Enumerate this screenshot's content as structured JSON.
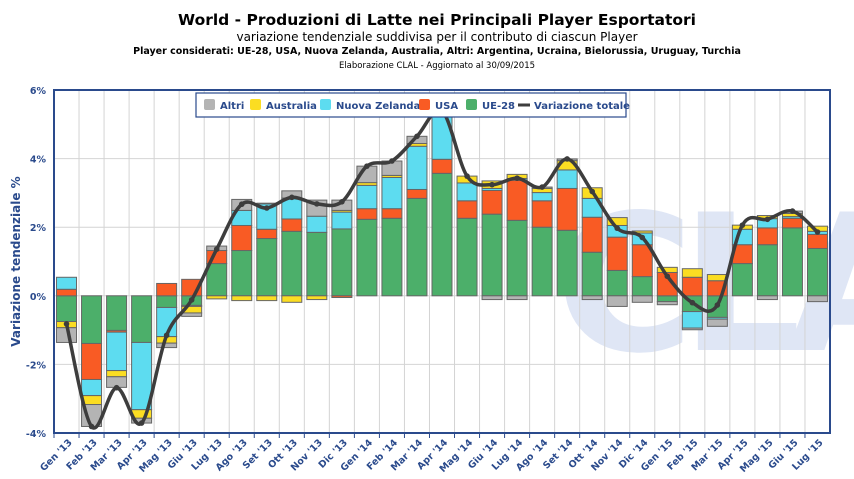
{
  "chart_data": {
    "type": "bar",
    "stacked": true,
    "title": "World - Produzioni di Latte nei Principali Player Esportatori",
    "subtitle": "variazione tendenziale suddivisa per il contributo di ciascun Player",
    "note": "Player considerati: UE-28, USA, Nuova Zelanda, Australia, Altri: Argentina, Ucraina, Bielorussia, Uruguay, Turchia",
    "source": "Elaborazione CLAL - Aggiornato al 30/09/2015",
    "watermark": "CLAL",
    "ylabel": "Variazione tendenziale %",
    "ylim": [
      -4,
      6
    ],
    "yticks": [
      "-4%",
      "-2%",
      "0%",
      "2%",
      "4%",
      "6%"
    ],
    "ytick_values": [
      -4,
      -2,
      0,
      2,
      4,
      6
    ],
    "grid": true,
    "legend_position": "top-right",
    "categories": [
      "Gen '13",
      "Feb '13",
      "Mar '13",
      "Apr '13",
      "Mag '13",
      "Giu '13",
      "Lug '13",
      "Ago '13",
      "Set '13",
      "Ott '13",
      "Nov '13",
      "Dic '13",
      "Gen '14",
      "Feb '14",
      "Mar '14",
      "Apr '14",
      "Mag '14",
      "Giu '14",
      "Lug '14",
      "Ago '14",
      "Set '14",
      "Ott '14",
      "Nov '14",
      "Dic '14",
      "Gen '15",
      "Feb '15",
      "Mar '15",
      "Apr '15",
      "Mag '15",
      "Giu '15",
      "Lug '15"
    ],
    "series": [
      {
        "name": "UE-28",
        "color": "#4caf6a",
        "values": [
          -0.75,
          -1.39,
          -1.01,
          -1.36,
          -0.34,
          -0.28,
          0.94,
          1.32,
          1.67,
          1.88,
          1.85,
          1.95,
          2.23,
          2.26,
          2.84,
          3.57,
          2.26,
          2.38,
          2.2,
          2.0,
          1.91,
          1.27,
          0.74,
          0.56,
          -0.17,
          -0.46,
          -0.63,
          0.94,
          1.49,
          1.98,
          1.38
        ]
      },
      {
        "name": "USA",
        "color": "#f95b24",
        "values": [
          0.19,
          -1.05,
          -0.05,
          0,
          0.36,
          0.48,
          0.38,
          0.73,
          0.27,
          0.36,
          0,
          -0.05,
          0.31,
          0.28,
          0.26,
          0.41,
          0.51,
          0.69,
          1.17,
          0.77,
          1.22,
          1.02,
          0.97,
          0.93,
          0.68,
          0.54,
          0.44,
          0.55,
          0.49,
          0.28,
          0.41
        ]
      },
      {
        "name": "Nuova Zelanda",
        "color": "#5ddcf0",
        "values": [
          0.35,
          -0.47,
          -1.12,
          -1.96,
          -0.85,
          -0.03,
          0,
          0.44,
          0.74,
          0.61,
          0.47,
          0.49,
          0.68,
          0.91,
          1.26,
          1.29,
          0.52,
          0.06,
          0.05,
          0.24,
          0.54,
          0.55,
          0.34,
          0.34,
          0,
          -0.48,
          -0.05,
          0.45,
          0.27,
          0.05,
          0.09
        ]
      },
      {
        "name": "Australia",
        "color": "#fbdd22",
        "values": [
          -0.18,
          -0.26,
          -0.18,
          -0.25,
          -0.19,
          -0.19,
          -0.09,
          -0.14,
          -0.14,
          -0.19,
          -0.11,
          0.05,
          0.08,
          0.06,
          0.08,
          0.12,
          0.2,
          0.22,
          0.12,
          0.12,
          0.27,
          0.31,
          0.23,
          0.06,
          0.15,
          0.25,
          0.18,
          0.12,
          0.09,
          0.09,
          0.15
        ]
      },
      {
        "name": "Altri",
        "color": "#b4b4b4",
        "values": [
          -0.43,
          -0.64,
          -0.31,
          -0.14,
          -0.13,
          -0.1,
          0.13,
          0.32,
          0.02,
          0.21,
          0.47,
          0.3,
          0.48,
          0.42,
          0.21,
          0,
          0,
          -0.11,
          -0.11,
          0.04,
          0.05,
          -0.11,
          -0.31,
          -0.19,
          -0.09,
          -0.05,
          -0.21,
          0,
          -0.11,
          0.07,
          -0.17
        ]
      }
    ],
    "line": {
      "name": "Variazione totale",
      "color": "#3d3d3d",
      "values": [
        -0.82,
        -3.81,
        -2.68,
        -3.71,
        -1.15,
        -0.12,
        1.36,
        2.67,
        2.56,
        2.87,
        2.68,
        2.74,
        3.78,
        3.93,
        4.65,
        5.39,
        3.49,
        3.24,
        3.43,
        3.17,
        3.99,
        3.04,
        1.97,
        1.7,
        0.57,
        -0.2,
        -0.27,
        2.06,
        2.23,
        2.47,
        1.86
      ]
    },
    "legend_order": [
      "Altri",
      "Australia",
      "Nuova Zelanda",
      "USA",
      "UE-28",
      "Variazione totale"
    ]
  }
}
